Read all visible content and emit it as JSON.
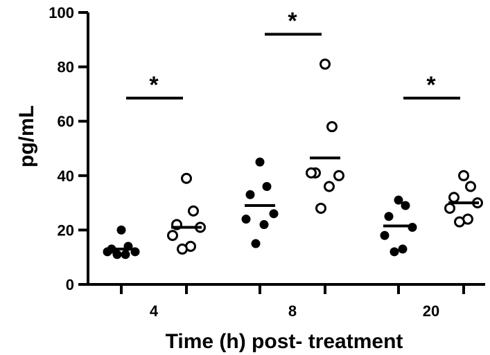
{
  "chart_data": {
    "type": "scatter",
    "title": "",
    "xlabel": "Time (h) post- treatment",
    "ylabel": "pg/mL",
    "ylim": [
      0,
      100
    ],
    "yticks": [
      "0",
      "20",
      "40",
      "60",
      "80",
      "100"
    ],
    "categories": [
      "4",
      "8",
      "20"
    ],
    "grid": false,
    "legend": "none",
    "series": [
      {
        "marker": "filled-circle",
        "color": "#000000",
        "groups": [
          {
            "category": "4",
            "values": [
              20,
              14,
              13,
              12,
              12,
              11,
              11
            ],
            "mean": 13
          },
          {
            "category": "8",
            "values": [
              45,
              36,
              33,
              26,
              24,
              22,
              15
            ],
            "mean": 29
          },
          {
            "category": "20",
            "values": [
              31,
              29,
              25,
              21,
              18,
              13,
              12
            ],
            "mean": 21.5
          }
        ]
      },
      {
        "marker": "open-circle",
        "color": "#000000",
        "groups": [
          {
            "category": "4",
            "values": [
              39,
              27,
              22,
              21,
              18,
              14,
              13
            ],
            "mean": 21
          },
          {
            "category": "8",
            "values": [
              81,
              58,
              41,
              40,
              41,
              36,
              28
            ],
            "mean": 46.5
          },
          {
            "category": "20",
            "values": [
              40,
              36,
              32,
              30,
              28,
              24,
              23
            ],
            "mean": 30
          }
        ]
      }
    ],
    "significance": [
      {
        "category": "4",
        "label": "*",
        "y": 68.5
      },
      {
        "category": "8",
        "label": "*",
        "y": 92
      },
      {
        "category": "20",
        "label": "*",
        "y": 68.5
      }
    ]
  }
}
